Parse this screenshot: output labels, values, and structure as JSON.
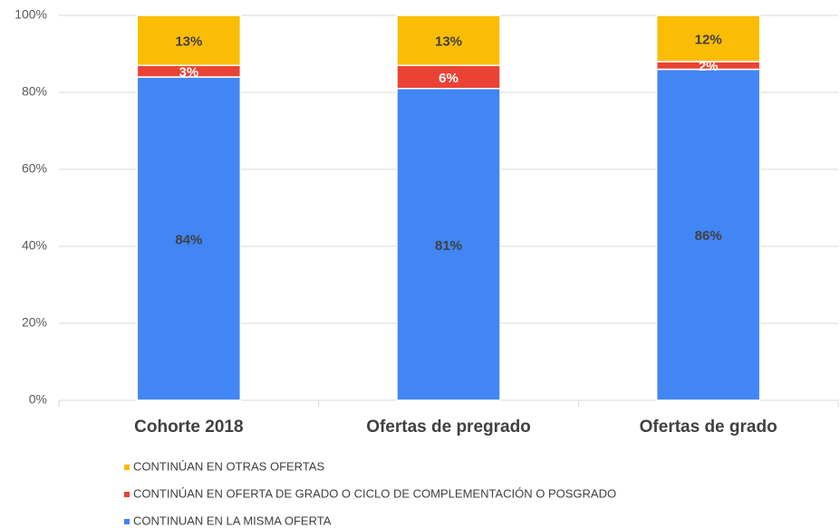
{
  "chart_data": {
    "type": "stacked_bar",
    "categories": [
      "Cohorte 2018",
      "Ofertas de pregrado",
      "Ofertas de grado"
    ],
    "series": [
      {
        "name": "CONTINUAN EN LA MISMA OFERTA",
        "color": "#4285f4",
        "label_color": "#404040",
        "values": [
          84,
          81,
          86
        ],
        "value_labels": [
          "84%",
          "81%",
          "86%"
        ]
      },
      {
        "name": "CONTINÚAN EN OFERTA DE GRADO O CICLO DE COMPLEMENTACIÓN O POSGRADO",
        "color": "#ea4335",
        "label_color": "#ffffff",
        "values": [
          3,
          6,
          2
        ],
        "value_labels": [
          "3%",
          "6%",
          "2%"
        ]
      },
      {
        "name": "CONTINÚAN EN OTRAS OFERTAS",
        "color": "#fbbc04",
        "label_color": "#404040",
        "values": [
          13,
          13,
          12
        ],
        "value_labels": [
          "13%",
          "13%",
          "12%"
        ]
      }
    ],
    "ylim": [
      0,
      100
    ],
    "yticks": [
      {
        "value": 0,
        "label": "0%"
      },
      {
        "value": 20,
        "label": "20%"
      },
      {
        "value": 40,
        "label": "40%"
      },
      {
        "value": 60,
        "label": "60%"
      },
      {
        "value": 80,
        "label": "80%"
      },
      {
        "value": 100,
        "label": "100%"
      }
    ],
    "grid": true
  }
}
